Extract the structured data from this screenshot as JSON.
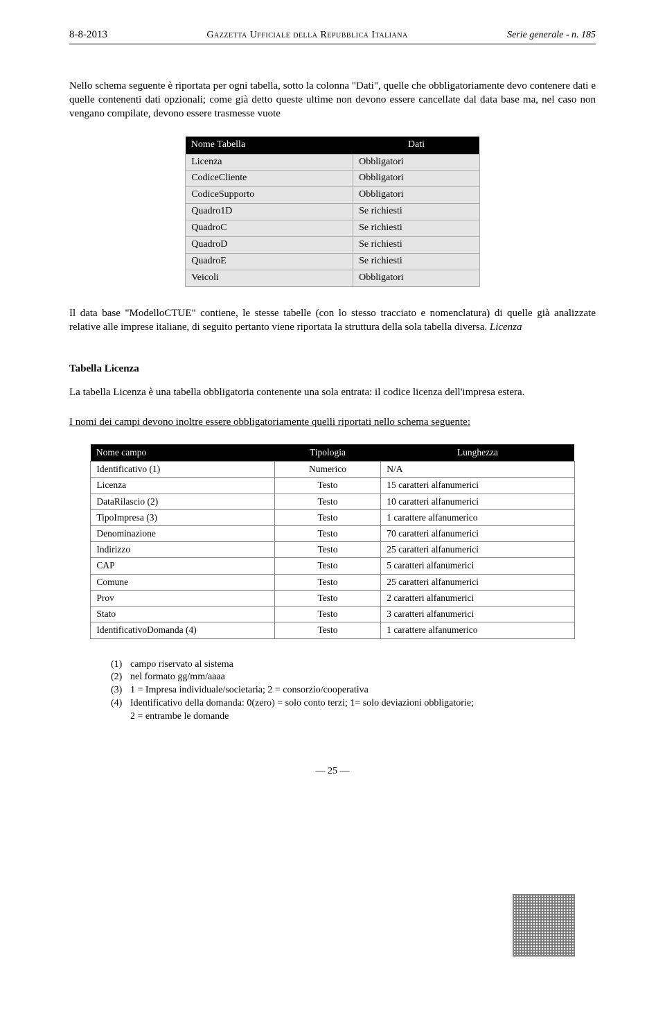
{
  "header": {
    "left": "8-8-2013",
    "center": "Gazzetta Ufficiale della Repubblica Italiana",
    "right": "Serie generale - n. 185"
  },
  "intro": "Nello schema seguente è riportata per ogni tabella, sotto la colonna \"Dati\", quelle che obbligatoriamente devo contenere dati e quelle contenenti dati opzionali; come già detto queste ultime non devono essere cancellate dal data base ma, nel caso non vengano compilate, devono essere trasmesse vuote",
  "table1": {
    "headers": [
      "Nome Tabella",
      "Dati"
    ],
    "rows": [
      [
        "Licenza",
        "Obbligatori"
      ],
      [
        "CodiceCliente",
        "Obbligatori"
      ],
      [
        "CodiceSupporto",
        "Obbligatori"
      ],
      [
        "Quadro1D",
        "Se richiesti"
      ],
      [
        "QuadroC",
        "Se richiesti"
      ],
      [
        "QuadroD",
        "Se richiesti"
      ],
      [
        "QuadroE",
        "Se richiesti"
      ],
      [
        "Veicoli",
        "Obbligatori"
      ]
    ]
  },
  "para2_a": "Il data base \"ModelloCTUE\" contiene, le stesse tabelle (con lo stesso tracciato e nomenclatura) di quelle già analizzate relative alle imprese italiane, di seguito pertanto viene riportata la struttura della sola tabella diversa. ",
  "para2_b": "Licenza",
  "section_title": "Tabella Licenza",
  "para3": "La tabella Licenza è una tabella obbligatoria contenente una sola entrata: il codice licenza dell'impresa estera.",
  "para4": "I nomi dei campi devono inoltre essere obbligatoriamente quelli  riportati nello schema seguente:",
  "table2": {
    "headers": [
      "Nome campo",
      "Tipologia",
      "Lunghezza"
    ],
    "rows": [
      [
        "Identificativo  (1)",
        "Numerico",
        "N/A"
      ],
      [
        "Licenza",
        "Testo",
        "15 caratteri alfanumerici"
      ],
      [
        "DataRilascio (2)",
        "Testo",
        "10 caratteri alfanumerici"
      ],
      [
        "TipoImpresa (3)",
        "Testo",
        "1 carattere alfanumerico"
      ],
      [
        "Denominazione",
        "Testo",
        "70 caratteri alfanumerici"
      ],
      [
        "Indirizzo",
        "Testo",
        "25 caratteri alfanumerici"
      ],
      [
        "CAP",
        "Testo",
        "5 caratteri alfanumerici"
      ],
      [
        "Comune",
        "Testo",
        "25 caratteri alfanumerici"
      ],
      [
        "Prov",
        "Testo",
        "2 caratteri alfanumerici"
      ],
      [
        "Stato",
        "Testo",
        "3 caratteri alfanumerici"
      ],
      [
        "IdentificativoDomanda (4)",
        "Testo",
        "1 carattere alfanumerico"
      ]
    ]
  },
  "notes": [
    {
      "n": "(1)",
      "t": "campo riservato al sistema"
    },
    {
      "n": "(2)",
      "t": "nel formato gg/mm/aaaa"
    },
    {
      "n": "(3)",
      "t": "1 =  Impresa individuale/societaria;  2 = consorzio/cooperativa"
    },
    {
      "n": "(4)",
      "t": "Identificativo della domanda: 0(zero) = solo conto terzi; 1= solo deviazioni obbligatorie;"
    }
  ],
  "note4_line2": "2 = entrambe le domande",
  "page_number": "—  25  —"
}
